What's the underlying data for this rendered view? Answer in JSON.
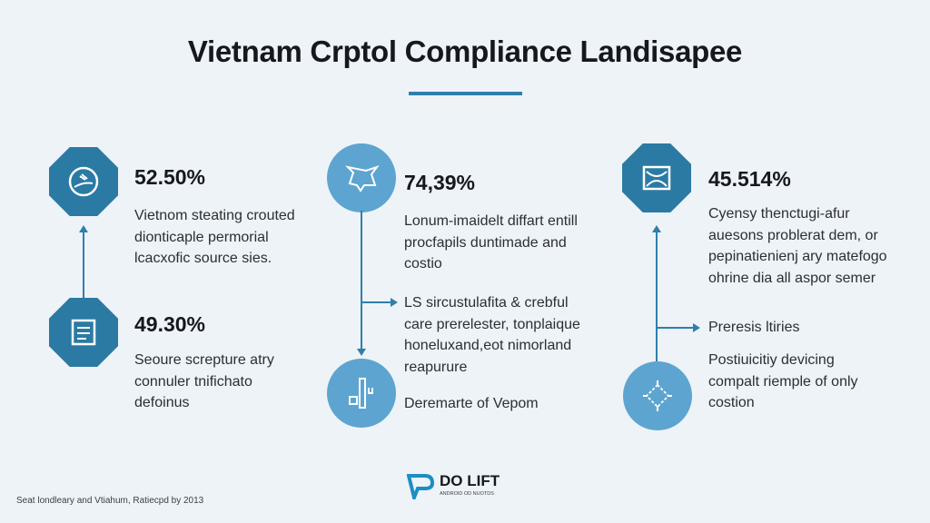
{
  "title": "Vietnam Crptol Compliance Landisapee",
  "colors": {
    "dark_blue": "#2b7aa3",
    "light_blue": "#5da5d0",
    "accent": "#2f7fab"
  },
  "left": {
    "top": {
      "icon": "hand-coin-icon",
      "stat": "52.50%",
      "lines": [
        "Vietnom steating crouted",
        "dionticaple permorial",
        "lcacxofic source sies."
      ]
    },
    "bottom": {
      "icon": "document-icon",
      "stat": "49.30%",
      "lines": [
        "Seoure screpture atry",
        "connuler tnifichato",
        "defoinus"
      ]
    }
  },
  "middle": {
    "top": {
      "icon": "map-icon",
      "stat": "74,39%",
      "lines": [
        "Lonum-imaidelt diffart entill",
        "procfapils duntimade and",
        "costio"
      ]
    },
    "branch": {
      "lines": [
        "LS sircustulafita & crebful",
        "care prerelester, tonplaique",
        "honeluxand,eot nimorland",
        "reapurure"
      ]
    },
    "bottom": {
      "icon": "blocks-icon",
      "lines": [
        "Deremarte of Vepom"
      ]
    }
  },
  "right": {
    "top": {
      "icon": "envelope-icon",
      "stat": "45.514%",
      "lines": [
        "Cyensy thenctugi-afur",
        "auesons problerat dem, or",
        "pepinatienienj ary matefogo",
        "ohrine dia all aspor semer"
      ]
    },
    "branch": {
      "lines": [
        "Preresis ltiries"
      ]
    },
    "bottom": {
      "icon": "network-icon",
      "lines": [
        "Postiuicitiy devicing",
        "compalt riemple of only",
        "costion"
      ]
    }
  },
  "footer": {
    "source": "Seat londleary and Vtiahum, Ratiecpd by 2013",
    "logo_name": "DO LIFT",
    "logo_tagline": "ANDROID OD NUOTDS"
  }
}
